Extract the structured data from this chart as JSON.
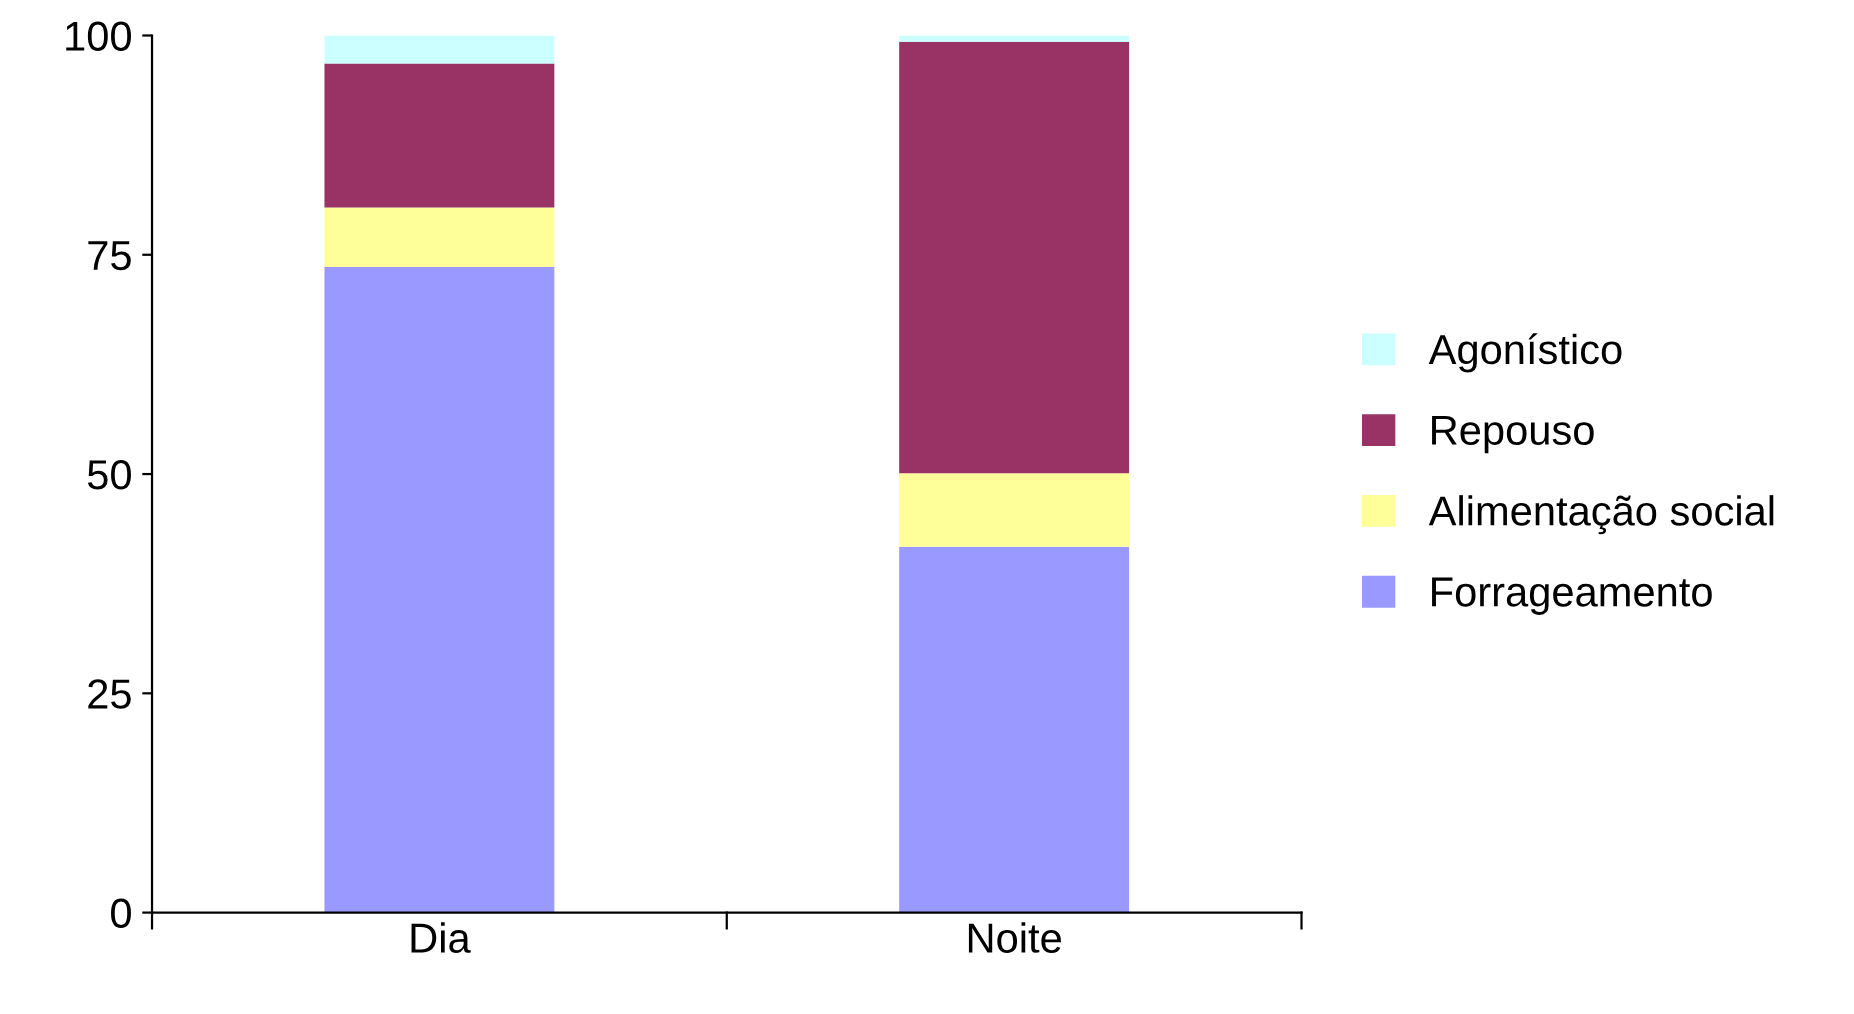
{
  "chart_data": {
    "type": "bar",
    "stacked": true,
    "categories": [
      "Dia",
      "Noite"
    ],
    "series": [
      {
        "name": "Forrageamento",
        "color": "#9999ff",
        "values": [
          73.6,
          41.7
        ]
      },
      {
        "name": "Alimentação social",
        "color": "#ffff99",
        "values": [
          6.8,
          8.4
        ]
      },
      {
        "name": "Repouso",
        "color": "#993366",
        "values": [
          16.4,
          49.2
        ]
      },
      {
        "name": "Agonístico",
        "color": "#ccffff",
        "values": [
          3.2,
          0.7
        ]
      }
    ],
    "ylim": [
      0,
      100
    ],
    "yticks": [
      0,
      25,
      50,
      75,
      100
    ],
    "grid": false,
    "legend": "right"
  }
}
